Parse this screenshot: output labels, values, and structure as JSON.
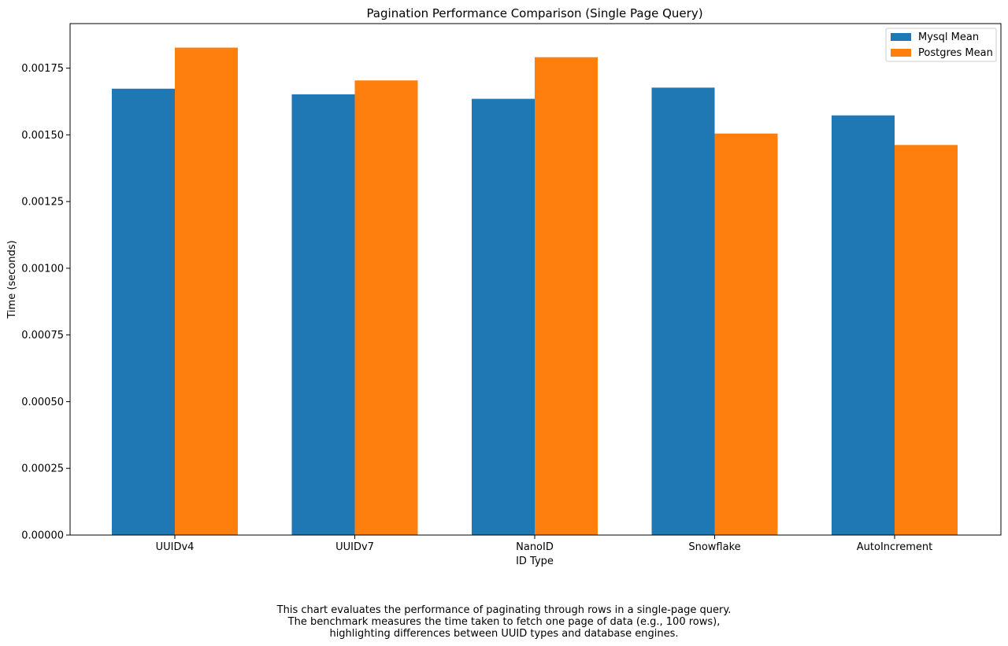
{
  "chart_data": {
    "type": "bar",
    "title": "Pagination Performance Comparison (Single Page Query)",
    "xlabel": "ID Type",
    "ylabel": "Time (seconds)",
    "categories": [
      "UUIDv4",
      "UUIDv7",
      "NanoID",
      "Snowflake",
      "AutoIncrement"
    ],
    "series": [
      {
        "name": "Mysql Mean",
        "color": "#1f77b4",
        "values": [
          0.001673,
          0.001652,
          0.001635,
          0.001677,
          0.001573
        ]
      },
      {
        "name": "Postgres Mean",
        "color": "#ff7f0e",
        "values": [
          0.001827,
          0.001704,
          0.001791,
          0.001505,
          0.001462
        ]
      }
    ],
    "ylim": [
      0,
      0.001917
    ],
    "yticks": [
      0,
      0.00025,
      0.0005,
      0.00075,
      0.001,
      0.00125,
      0.0015,
      0.00175
    ],
    "ytick_labels": [
      "0.00000",
      "0.00025",
      "0.00050",
      "0.00075",
      "0.00100",
      "0.00125",
      "0.00150",
      "0.00175"
    ],
    "grid": false,
    "legend": "top-right"
  },
  "caption": {
    "lines": [
      "This chart evaluates the performance of paginating through rows in a single-page query.",
      "The benchmark measures the time taken to fetch one page of data (e.g., 100 rows),",
      "highlighting differences between UUID types and database engines."
    ]
  }
}
